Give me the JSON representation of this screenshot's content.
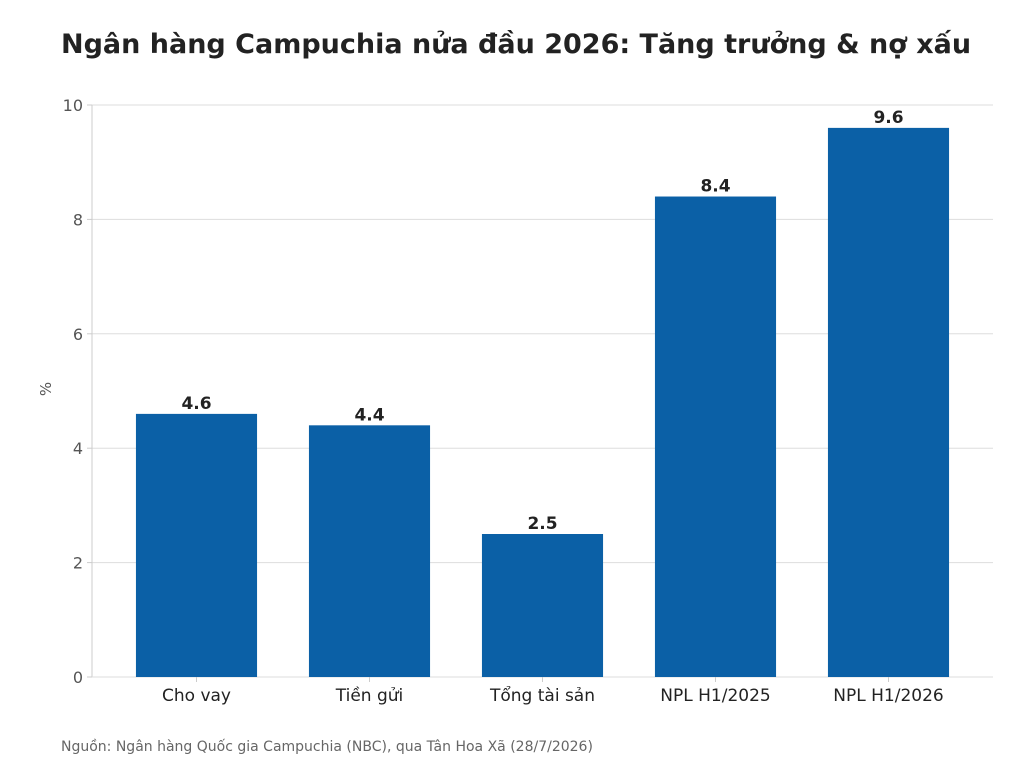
{
  "chart_data": {
    "type": "bar",
    "title": "Ngân hàng Campuchia nửa đầu 2026: Tăng trưởng & nợ xấu",
    "xlabel": "",
    "ylabel": "%",
    "ylim": [
      0,
      10
    ],
    "yticks": [
      0,
      2,
      4,
      6,
      8,
      10
    ],
    "categories": [
      "Cho vay",
      "Tiền gửi",
      "Tổng tài sản",
      "NPL H1/2025",
      "NPL H1/2026"
    ],
    "values": [
      4.6,
      4.4,
      2.5,
      8.4,
      9.6
    ],
    "value_labels": [
      "4.6",
      "4.4",
      "2.5",
      "8.4",
      "9.6"
    ],
    "bar_color": "#0b60a6",
    "grid": true,
    "legend": "none",
    "source": "Nguồn: Ngân hàng Quốc gia Campuchia (NBC), qua Tân Hoa Xã (28/7/2026)"
  }
}
